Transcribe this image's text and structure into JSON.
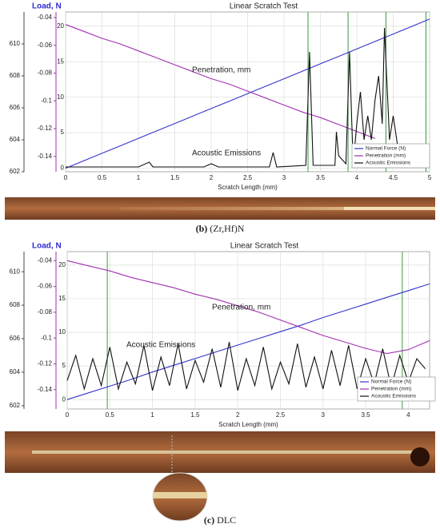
{
  "chart_data": [
    {
      "type": "line",
      "title": "Linear Scratch Test",
      "x_label": "Scratch Length (mm)",
      "y_label": "Load, N",
      "label": "(b)",
      "caption": "(Zr,Hf)N",
      "annotations": [
        {
          "text": "Penetration, mm",
          "color": "#a030b0"
        },
        {
          "text": "Acoustic Emissions",
          "color": "#111111"
        }
      ],
      "xlim": [
        0,
        5
      ],
      "xticks": [
        0,
        0.5,
        1,
        1.5,
        2,
        2.5,
        3,
        3.5,
        4,
        4.5,
        5
      ],
      "ylim": [
        -0.5,
        22
      ],
      "yticks": [
        0,
        5,
        10,
        15,
        20
      ],
      "y2lim": [
        -0.151,
        -0.036
      ],
      "y2ticks": [
        -0.04,
        -0.06,
        -0.08,
        -0.1,
        -0.12,
        -0.14
      ],
      "y3lim": [
        602,
        612
      ],
      "y3ticks": [
        602,
        604,
        606,
        608,
        610
      ],
      "grid": true,
      "legend": "lower right",
      "vlines": [
        3.33,
        3.88,
        4.4,
        4.95
      ],
      "vline_color": "#3a9a3a",
      "x": [
        0,
        0.25,
        0.5,
        0.75,
        1,
        1.25,
        1.5,
        1.75,
        2,
        2.25,
        2.5,
        2.75,
        3,
        3.25,
        3.5,
        3.75,
        4,
        4.25,
        4.5,
        4.75,
        5
      ],
      "series": [
        {
          "name": "Normal Force (N)",
          "color": "#3333cc",
          "axis": "y",
          "values": [
            0,
            1.05,
            2.1,
            3.15,
            4.2,
            5.25,
            6.3,
            7.35,
            8.4,
            9.45,
            10.5,
            11.55,
            12.6,
            13.65,
            14.7,
            15.75,
            16.8,
            17.85,
            18.9,
            19.95,
            21
          ]
        },
        {
          "name": "Penetration (mm)",
          "color": "#a030b0",
          "axis": "y2",
          "values": [
            -0.045,
            -0.05,
            -0.055,
            -0.059,
            -0.064,
            -0.069,
            -0.074,
            -0.079,
            -0.084,
            -0.088,
            -0.093,
            -0.098,
            -0.103,
            -0.108,
            -0.112,
            -0.117,
            -0.122,
            -0.127,
            null,
            null,
            null
          ]
        },
        {
          "name": "Acoustic Emissions",
          "color": "#111111",
          "axis": "y3",
          "x": [
            0,
            0.5,
            1.0,
            1.15,
            1.2,
            1.25,
            1.9,
            2.0,
            2.1,
            2.8,
            2.85,
            2.9,
            3.3,
            3.35,
            3.4,
            3.7,
            3.72,
            3.75,
            3.85,
            3.9,
            3.95,
            4.0,
            4.05,
            4.1,
            4.15,
            4.2,
            4.25,
            4.3,
            4.35,
            4.38,
            4.4,
            4.45,
            4.5,
            4.6,
            4.95,
            5.0
          ],
          "values": [
            602.3,
            602.3,
            602.3,
            602.6,
            602.3,
            602.3,
            602.3,
            602.5,
            602.3,
            602.3,
            603.2,
            602.3,
            602.4,
            609.5,
            602.4,
            602.4,
            604.5,
            603,
            602.5,
            609.5,
            602.5,
            605,
            607,
            604,
            605.5,
            604,
            606.5,
            608,
            605,
            611,
            609,
            604,
            605.5,
            602.4,
            602.4,
            603
          ]
        }
      ]
    },
    {
      "type": "line",
      "title": "Linear Scratch Test",
      "x_label": "Scratch Length (mm)",
      "y_label": "Load, N",
      "label": "(c)",
      "caption": "DLC",
      "annotations": [
        {
          "text": "Penetration, mm",
          "color": "#a030b0"
        },
        {
          "text": "Acoustic Emissions",
          "color": "#111111"
        }
      ],
      "xlim": [
        0,
        4.25
      ],
      "xticks": [
        0,
        0.5,
        1,
        1.5,
        2,
        2.5,
        3,
        3.5,
        4
      ],
      "ylim": [
        -1.4,
        22
      ],
      "yticks": [
        0,
        5,
        10,
        15,
        20
      ],
      "y2lim": [
        -0.155,
        -0.033
      ],
      "y2ticks": [
        -0.04,
        -0.06,
        -0.08,
        -0.1,
        -0.12,
        -0.14
      ],
      "y3lim": [
        601.8,
        611.2
      ],
      "y3ticks": [
        602,
        604,
        606,
        608,
        610
      ],
      "grid": true,
      "legend": "lower right",
      "vlines": [
        0.47,
        3.93
      ],
      "vline_color": "#3a9a3a",
      "x": [
        0,
        0.25,
        0.5,
        0.75,
        1,
        1.25,
        1.5,
        1.75,
        2,
        2.25,
        2.5,
        2.75,
        3,
        3.25,
        3.5,
        3.75,
        4,
        4.25
      ],
      "series": [
        {
          "name": "Normal Force (N)",
          "color": "#3333cc",
          "axis": "y",
          "values": [
            0,
            1,
            2,
            3,
            4.1,
            5.1,
            6.1,
            7.1,
            8.1,
            9.1,
            10.1,
            11.1,
            12.2,
            13.2,
            14.2,
            15.2,
            16.2,
            17.2
          ]
        },
        {
          "name": "Penetration (mm)",
          "color": "#a030b0",
          "axis": "y2",
          "values": [
            -0.04,
            -0.044,
            -0.048,
            -0.053,
            -0.057,
            -0.061,
            -0.066,
            -0.07,
            -0.075,
            -0.08,
            -0.086,
            -0.092,
            -0.098,
            -0.103,
            -0.108,
            -0.112,
            -0.109,
            -0.102
          ]
        },
        {
          "name": "Acoustic Emissions",
          "color": "#111111",
          "axis": "y3",
          "x": [
            0,
            0.1,
            0.2,
            0.3,
            0.4,
            0.5,
            0.6,
            0.7,
            0.8,
            0.9,
            1,
            1.1,
            1.2,
            1.3,
            1.4,
            1.5,
            1.6,
            1.7,
            1.8,
            1.9,
            2,
            2.1,
            2.2,
            2.3,
            2.4,
            2.5,
            2.6,
            2.7,
            2.8,
            2.9,
            3,
            3.1,
            3.2,
            3.3,
            3.4,
            3.5,
            3.6,
            3.7,
            3.8,
            3.9,
            4,
            4.1,
            4.2
          ],
          "values": [
            603.5,
            605,
            603,
            604.8,
            603.2,
            605.5,
            603,
            604.6,
            603.3,
            605.6,
            602.9,
            604.9,
            603.2,
            605.7,
            603,
            604.7,
            603.4,
            605.4,
            603.1,
            605.8,
            602.9,
            604.8,
            603.2,
            605.5,
            603,
            604.6,
            603.3,
            605.7,
            603.1,
            604.9,
            603,
            605.3,
            603.2,
            605.6,
            603,
            604.8,
            603.3,
            605.4,
            603.1,
            605,
            603.4,
            604.8,
            604.2
          ]
        }
      ]
    }
  ]
}
